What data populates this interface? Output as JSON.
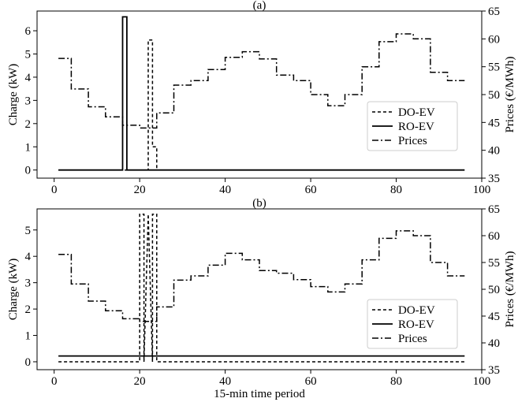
{
  "figure": {
    "xlabel": "15-min time period"
  },
  "chart_data": [
    {
      "panel_label": "(a)",
      "type": "line",
      "xlabel": "",
      "ylabel": "Charge (kW)",
      "y2label": "Prices (€/MWh)",
      "xlim": [
        -4,
        100
      ],
      "ylim": [
        -0.35,
        6.85
      ],
      "y2lim": [
        35,
        65
      ],
      "xticks": [
        0,
        20,
        40,
        60,
        80,
        100
      ],
      "yticks": [
        0,
        1,
        2,
        3,
        4,
        5,
        6
      ],
      "y2ticks": [
        35,
        40,
        45,
        50,
        55,
        60,
        65
      ],
      "legend": {
        "position": "center-right",
        "entries": [
          "DO-EV",
          "RO-EV",
          "Prices"
        ]
      },
      "grid": false,
      "series": [
        {
          "name": "DO-EV",
          "style": "dashed",
          "axis": "left",
          "x": [
            1,
            22,
            22,
            23,
            23,
            24,
            24,
            96
          ],
          "y": [
            0,
            0,
            5.6,
            5.6,
            1.0,
            1.0,
            0,
            0
          ]
        },
        {
          "name": "RO-EV",
          "style": "solid",
          "axis": "left",
          "x": [
            1,
            16,
            16,
            17,
            17,
            96
          ],
          "y": [
            0,
            0,
            6.6,
            6.6,
            0,
            0
          ]
        },
        {
          "name": "Prices",
          "style": "dashdot",
          "axis": "right",
          "x": [
            1,
            4,
            4,
            8,
            8,
            12,
            12,
            16,
            16,
            20,
            20,
            24,
            24,
            28,
            28,
            32,
            32,
            36,
            36,
            40,
            40,
            44,
            44,
            48,
            48,
            52,
            52,
            56,
            56,
            60,
            60,
            64,
            64,
            68,
            68,
            72,
            72,
            76,
            76,
            80,
            80,
            84,
            84,
            88,
            88,
            92,
            92,
            96
          ],
          "y": [
            56.5,
            56.5,
            51.0,
            51.0,
            47.8,
            47.8,
            46.0,
            46.0,
            44.5,
            44.5,
            44.0,
            44.0,
            46.7,
            46.7,
            51.7,
            51.7,
            52.5,
            52.5,
            54.5,
            54.5,
            56.7,
            56.7,
            57.7,
            57.7,
            56.4,
            56.4,
            53.5,
            53.5,
            52.5,
            52.5,
            50.0,
            50.0,
            48.0,
            48.0,
            50.0,
            50.0,
            55.0,
            55.0,
            59.5,
            59.5,
            60.9,
            60.9,
            60.0,
            60.0,
            54.0,
            54.0,
            52.5,
            52.5
          ]
        }
      ]
    },
    {
      "panel_label": "(b)",
      "type": "line",
      "xlabel": "15-min time period",
      "ylabel": "Charge (kW)",
      "y2label": "Prices (€/MWh)",
      "xlim": [
        -4,
        100
      ],
      "ylim": [
        -0.3,
        5.8
      ],
      "y2lim": [
        35,
        65
      ],
      "xticks": [
        0,
        20,
        40,
        60,
        80,
        100
      ],
      "yticks": [
        0,
        1,
        2,
        3,
        4,
        5
      ],
      "y2ticks": [
        35,
        40,
        45,
        50,
        55,
        60,
        65
      ],
      "legend": {
        "position": "center-right",
        "entries": [
          "DO-EV",
          "RO-EV",
          "Prices"
        ]
      },
      "grid": false,
      "series": [
        {
          "name": "DO-EV",
          "style": "dashed",
          "axis": "left",
          "x": [
            1,
            20,
            20,
            21,
            21,
            22,
            22,
            23,
            23,
            24,
            24,
            96
          ],
          "y": [
            0,
            0,
            5.6,
            5.6,
            0,
            5.6,
            5.6,
            0,
            5.6,
            5.6,
            0,
            0
          ]
        },
        {
          "name": "RO-EV",
          "style": "solid",
          "axis": "left",
          "x": [
            1,
            96
          ],
          "y": [
            0.22,
            0.22
          ]
        },
        {
          "name": "Prices",
          "style": "dashdot",
          "axis": "right",
          "x": [
            1,
            4,
            4,
            8,
            8,
            12,
            12,
            16,
            16,
            20,
            20,
            24,
            24,
            28,
            28,
            32,
            32,
            36,
            36,
            40,
            40,
            44,
            44,
            48,
            48,
            52,
            52,
            56,
            56,
            60,
            60,
            64,
            64,
            68,
            68,
            72,
            72,
            76,
            76,
            80,
            80,
            84,
            84,
            88,
            88,
            92,
            92,
            96
          ],
          "y": [
            56.5,
            56.5,
            51.0,
            51.0,
            47.8,
            47.8,
            46.0,
            46.0,
            44.5,
            44.5,
            44.0,
            44.0,
            46.7,
            46.7,
            51.7,
            51.7,
            52.5,
            52.5,
            54.5,
            54.5,
            56.7,
            56.7,
            55.5,
            55.5,
            53.5,
            53.5,
            53.0,
            53.0,
            51.8,
            51.8,
            50.5,
            50.5,
            49.5,
            49.5,
            51.0,
            51.0,
            55.5,
            55.5,
            59.5,
            59.5,
            60.9,
            60.9,
            60.0,
            60.0,
            55.0,
            55.0,
            52.5,
            52.5
          ]
        }
      ]
    }
  ]
}
